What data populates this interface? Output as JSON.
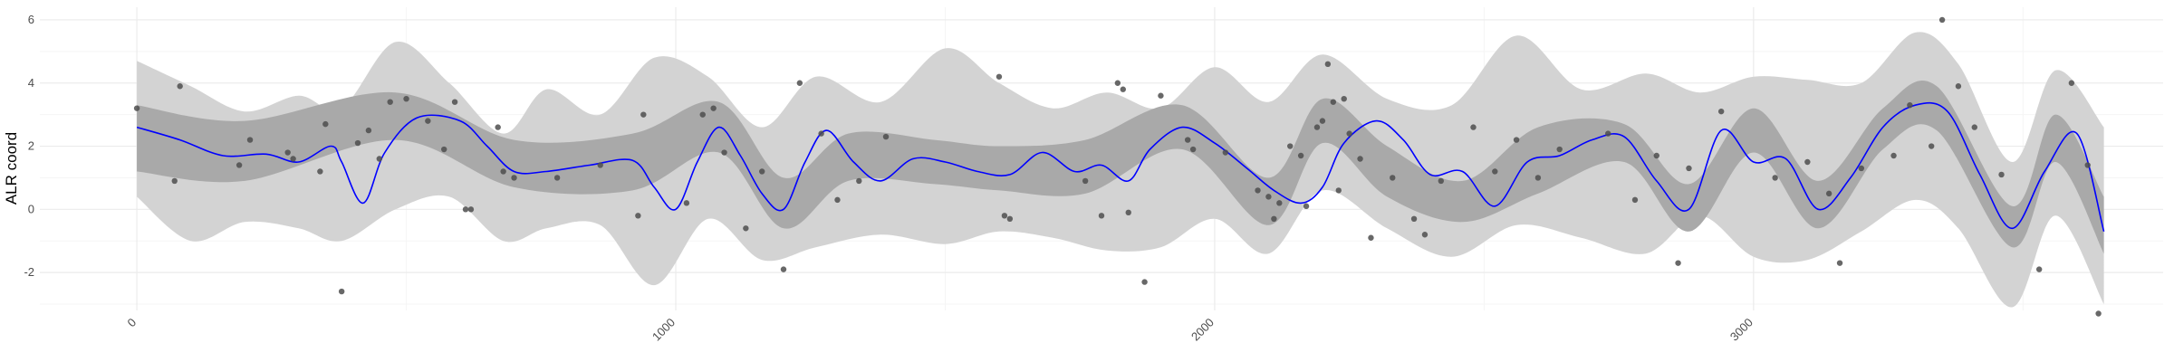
{
  "chart_data": {
    "type": "line",
    "title": "",
    "xlabel": "",
    "ylabel": "ALR coord",
    "xlim": [
      -180,
      3760
    ],
    "ylim": [
      -3.2,
      6.4
    ],
    "x_ticks": [
      0,
      1000,
      2000,
      3000
    ],
    "x_tick_labels": [
      "0",
      "1000",
      "2000",
      "3000"
    ],
    "y_ticks": [
      -2,
      0,
      2,
      4,
      6
    ],
    "y_tick_labels": [
      "-2",
      "0",
      "2",
      "4",
      "6"
    ],
    "grid": true,
    "legend": "none",
    "colors": {
      "mean_line": "#0000ff",
      "inner_band": "#a9a9a9",
      "outer_band": "#d3d3d3",
      "points": "#4d4d4d",
      "grid_major": "#ebebeb",
      "grid_minor": "#f5f5f5"
    },
    "series": [
      {
        "kind": "mean",
        "x": [
          0,
          80,
          160,
          240,
          300,
          360,
          380,
          420,
          460,
          520,
          600,
          650,
          700,
          760,
          840,
          920,
          960,
          1000,
          1040,
          1080,
          1120,
          1160,
          1200,
          1240,
          1280,
          1330,
          1380,
          1440,
          1500,
          1560,
          1620,
          1680,
          1740,
          1790,
          1840,
          1880,
          1940,
          2000,
          2060,
          2110,
          2160,
          2200,
          2240,
          2300,
          2350,
          2400,
          2460,
          2520,
          2580,
          2640,
          2700,
          2760,
          2820,
          2880,
          2940,
          3000,
          3060,
          3120,
          3180,
          3240,
          3300,
          3360,
          3420,
          3480,
          3540,
          3600,
          3650
        ],
        "y": [
          2.6,
          2.2,
          1.7,
          1.75,
          1.5,
          2.0,
          1.5,
          0.2,
          1.8,
          2.9,
          2.8,
          2.0,
          1.2,
          1.2,
          1.4,
          1.55,
          0.7,
          0.0,
          1.5,
          2.6,
          1.7,
          0.5,
          0.0,
          1.5,
          2.5,
          1.5,
          0.9,
          1.6,
          1.5,
          1.2,
          1.1,
          1.8,
          1.2,
          1.4,
          0.9,
          1.9,
          2.6,
          2.1,
          1.3,
          0.6,
          0.2,
          0.7,
          2.1,
          2.8,
          2.2,
          1.1,
          1.2,
          0.1,
          1.5,
          1.7,
          2.2,
          2.3,
          0.9,
          0.0,
          2.5,
          1.5,
          1.6,
          0.0,
          1.0,
          2.6,
          3.3,
          3.1,
          1.1,
          -0.6,
          1.2,
          2.4,
          -0.7
        ]
      },
      {
        "kind": "band_inner",
        "x": [
          0,
          200,
          480,
          700,
          920,
          1080,
          1200,
          1320,
          1480,
          1600,
          1760,
          1940,
          2100,
          2200,
          2320,
          2460,
          2600,
          2760,
          2880,
          3000,
          3120,
          3240,
          3340,
          3480,
          3560,
          3650
        ],
        "lower": [
          1.2,
          0.9,
          2.2,
          0.7,
          0.6,
          1.8,
          -0.6,
          0.9,
          0.8,
          0.6,
          0.5,
          1.9,
          -0.5,
          2.1,
          0.4,
          -0.4,
          0.5,
          1.5,
          -0.7,
          1.8,
          -0.6,
          1.9,
          2.5,
          -1.2,
          1.5,
          -1.4
        ],
        "upper": [
          3.3,
          2.8,
          3.7,
          2.2,
          2.4,
          3.4,
          1.0,
          2.4,
          2.2,
          2.0,
          2.2,
          3.3,
          1.0,
          3.5,
          2.0,
          0.9,
          2.6,
          2.7,
          0.8,
          3.2,
          0.9,
          3.2,
          3.9,
          0.1,
          3.0,
          0.4
        ]
      },
      {
        "kind": "band_outer",
        "x": [
          0,
          100,
          200,
          300,
          380,
          480,
          580,
          680,
          760,
          860,
          960,
          1060,
          1160,
          1260,
          1380,
          1500,
          1600,
          1700,
          1800,
          1900,
          2000,
          2100,
          2200,
          2320,
          2440,
          2560,
          2680,
          2800,
          2900,
          3000,
          3100,
          3200,
          3300,
          3380,
          3480,
          3560,
          3650
        ],
        "lower": [
          0.4,
          -1.0,
          -0.4,
          -0.6,
          -1.0,
          0.0,
          0.4,
          -1.0,
          -0.6,
          -0.5,
          -2.4,
          -0.3,
          -1.6,
          -1.2,
          -0.8,
          -1.1,
          -0.7,
          -0.9,
          -1.3,
          -1.2,
          -0.3,
          -1.4,
          0.6,
          -0.6,
          -1.5,
          -0.5,
          -0.9,
          -1.4,
          -0.2,
          -1.5,
          -1.6,
          -0.7,
          0.3,
          -0.6,
          -3.1,
          -0.2,
          -3.0
        ],
        "upper": [
          4.7,
          3.9,
          3.1,
          3.6,
          3.2,
          5.3,
          4.0,
          2.4,
          3.8,
          3.0,
          4.8,
          4.2,
          2.6,
          4.2,
          3.4,
          5.1,
          4.0,
          3.2,
          3.7,
          3.2,
          4.5,
          3.4,
          4.9,
          3.5,
          3.3,
          5.5,
          3.8,
          4.3,
          3.7,
          4.2,
          4.1,
          4.0,
          5.6,
          4.6,
          1.5,
          4.4,
          2.6
        ]
      },
      {
        "kind": "observations",
        "x": [
          0,
          70,
          80,
          190,
          210,
          280,
          290,
          340,
          350,
          380,
          410,
          430,
          450,
          470,
          500,
          540,
          570,
          590,
          610,
          620,
          670,
          680,
          700,
          780,
          860,
          930,
          940,
          1020,
          1050,
          1070,
          1090,
          1130,
          1160,
          1200,
          1230,
          1270,
          1300,
          1340,
          1390,
          1600,
          1610,
          1620,
          1760,
          1790,
          1820,
          1830,
          1840,
          1870,
          1900,
          1950,
          1960,
          2020,
          2080,
          2100,
          2110,
          2120,
          2140,
          2160,
          2170,
          2190,
          2200,
          2210,
          2220,
          2230,
          2240,
          2250,
          2270,
          2290,
          2330,
          2370,
          2390,
          2420,
          2480,
          2520,
          2560,
          2600,
          2640,
          2730,
          2780,
          2820,
          2860,
          2880,
          2940,
          3040,
          3100,
          3140,
          3160,
          3200,
          3260,
          3290,
          3330,
          3350,
          3380,
          3410,
          3460,
          3530,
          3590,
          3620,
          3640
        ],
        "y": [
          3.2,
          0.9,
          3.9,
          1.4,
          2.2,
          1.8,
          1.6,
          1.2,
          2.7,
          -2.6,
          2.1,
          2.5,
          1.6,
          3.4,
          3.5,
          2.8,
          1.9,
          3.4,
          0.0,
          0.0,
          2.6,
          1.2,
          1.0,
          1.0,
          1.4,
          -0.2,
          3.0,
          0.2,
          3.0,
          3.2,
          1.8,
          -0.6,
          1.2,
          -1.9,
          4.0,
          2.4,
          0.3,
          0.9,
          2.3,
          4.2,
          -0.2,
          -0.3,
          0.9,
          -0.2,
          4.0,
          3.8,
          -0.1,
          -2.3,
          3.6,
          2.2,
          1.9,
          1.8,
          0.6,
          0.4,
          -0.3,
          0.2,
          2.0,
          1.7,
          0.1,
          2.6,
          2.8,
          4.6,
          3.4,
          0.6,
          3.5,
          2.4,
          1.6,
          -0.9,
          1.0,
          -0.3,
          -0.8,
          0.9,
          2.6,
          1.2,
          2.2,
          1.0,
          1.9,
          2.4,
          0.3,
          1.7,
          -1.7,
          1.3,
          3.1,
          1.0,
          1.5,
          0.5,
          -1.7,
          1.3,
          1.7,
          3.3,
          2.0,
          6.0,
          3.9,
          2.6,
          1.1,
          -1.9,
          4.0,
          1.4,
          -3.3
        ]
      }
    ]
  }
}
